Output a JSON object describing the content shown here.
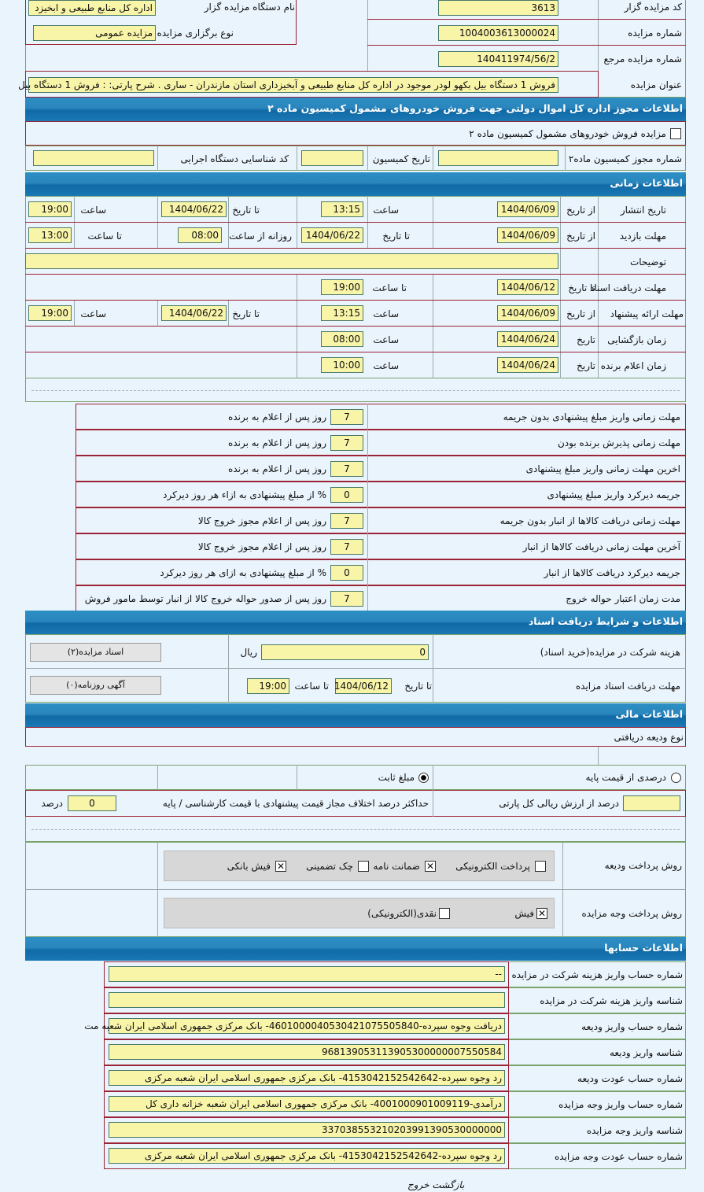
{
  "top": {
    "code_label": "کد مزایده گزار",
    "code": "3613",
    "org_label": "نام دستگاه مزایده گزار",
    "org": "اداره کل منابع طبیعی و ابخیزد",
    "num_label": "شماره مزایده",
    "num": "1004003613000024",
    "type_label": "نوع برگزاری مزایده",
    "type": "مزایده عمومی",
    "ref_label": "شماره مزایده مرجع",
    "ref": "140411974/56/2",
    "title_label": "عنوان مزایده",
    "title": "فروش 1 دستگاه بیل بکهو لودر موجود در اداره کل منابع طبیعی و آبخیزداری استان مازندران - ساری . شرح پارتی: : فروش 1 دستگاه بیل"
  },
  "sec1": {
    "header": "اطلاعات مجوز اداره کل اموال دولتی جهت فروش خودروهای مشمول کمیسیون ماده ۲",
    "checkbox": "مزایده فروش خودروهای مشمول کمیسیون ماده ۲",
    "permit_label": "شماره مجوز کمیسیون ماده۲",
    "date_label": "تاریخ کمیسیون",
    "exec_label": "کد شناسایی دستگاه اجرایی"
  },
  "time": {
    "header": "اطلاعات زمانی",
    "from_date": "از تاریخ",
    "to_date": "تا تاریخ",
    "time": "ساعت",
    "to_time": "تا ساعت",
    "daily_from": "روزانه از ساعت",
    "date": "تاریخ",
    "publish": {
      "label": "تاریخ انتشار",
      "from": "1404/06/09",
      "from_time": "13:15",
      "to": "1404/06/22",
      "to_time": "19:00"
    },
    "visit": {
      "label": "مهلت بازدید",
      "from": "1404/06/09",
      "to": "1404/06/22",
      "daily_from": "08:00",
      "daily_to": "13:00"
    },
    "desc_label": "توضیحات",
    "docs": {
      "label": "مهلت دریافت اسناد",
      "to": "1404/06/12",
      "to_time": "19:00"
    },
    "offer": {
      "label": "مهلت ارائه پیشنهاد",
      "from": "1404/06/09",
      "from_time": "13:15",
      "to": "1404/06/22",
      "to_time": "19:00"
    },
    "open": {
      "label": "زمان بازگشایی",
      "date": "1404/06/24",
      "time": "08:00"
    },
    "winner": {
      "label": "زمان اعلام برنده",
      "date": "1404/06/24",
      "time": "10:00"
    }
  },
  "terms": [
    {
      "label": "مهلت زمانی واریز مبلغ پیشنهادی بدون جریمه",
      "value": "7",
      "unit": "روز پس از اعلام به برنده"
    },
    {
      "label": "مهلت زمانی پذیرش برنده بودن",
      "value": "7",
      "unit": "روز پس از اعلام به برنده"
    },
    {
      "label": "اخرین مهلت زمانی واریز مبلغ پیشنهادی",
      "value": "7",
      "unit": "روز پس از اعلام به برنده"
    },
    {
      "label": "جریمه دیرکرد واریز مبلغ پیشنهادی",
      "value": "0",
      "unit": "% از مبلغ پیشنهادی به ازاء هر روز دیرکرد"
    },
    {
      "label": "مهلت زمانی دریافت کالاها از انبار بدون جریمه",
      "value": "7",
      "unit": "روز پس از اعلام مجوز خروج کالا"
    },
    {
      "label": "آخرین مهلت زمانی دریافت کالاها از انبار",
      "value": "7",
      "unit": "روز پس از اعلام مجوز خروج کالا"
    },
    {
      "label": "جریمه دیرکرد دریافت کالاها از انبار",
      "value": "0",
      "unit": "% از مبلغ پیشنهادی به ازای هر روز دیرکرد"
    },
    {
      "label": "مدت زمان اعتبار حواله خروج",
      "value": "7",
      "unit": "روز پس از صدور حواله خروج کالا از انبار توسط مامور فروش"
    }
  ],
  "docs": {
    "header": "اطلاعات و شرایط دریافت اسناد",
    "fee_label": "هزینه شرکت در مزایده(خرید اسناد)",
    "fee": "0",
    "currency": "ریال",
    "deadline_label": "مهلت دریافت اسناد مزایده",
    "to_date": "تا تاریخ",
    "date": "1404/06/12",
    "to_time": "تا ساعت",
    "time": "19:00",
    "docs_button": "اسناد مزایده(۲)",
    "ad_button": "آگهی روزنامه(۰)"
  },
  "finance": {
    "header": "اطلاعات مالی",
    "deposit_type": "نوع ودیعه دریافتی",
    "radio_percent": "درصدی از قیمت پایه",
    "radio_fixed": "مبلغ ثابت",
    "percent_label": "درصد از ارزش ریالی کل پارتی",
    "max_label": "حداکثر درصد اختلاف مجاز قیمت پیشنهادی با قیمت کارشناسی / پایه",
    "max": "0",
    "max_unit": "درصد",
    "deposit_method_label": "روش پرداخت ودیعه",
    "deposit_methods": [
      {
        "label": "پرداخت الکترونیکی",
        "checked": false
      },
      {
        "label": "ضمانت نامه",
        "checked": true
      },
      {
        "label": "چک تضمینی",
        "checked": false
      },
      {
        "label": "فیش بانکی",
        "checked": true
      }
    ],
    "pay_method_label": "روش پرداخت وجه مزایده",
    "pay_methods": [
      {
        "label": "فیش",
        "checked": true
      },
      {
        "label": "نقدی(الکترونیکی)",
        "checked": false
      }
    ]
  },
  "accounts": {
    "header": "اطلاعات حسابها",
    "rows": [
      {
        "label": "شماره حساب واریز هزینه شرکت در مزایده",
        "value": "--"
      },
      {
        "label": "شناسه واریز هزینه شرکت در مزایده",
        "value": ""
      },
      {
        "label": "شماره حساب واریز ودیعه",
        "value": "دریافت وجوه سپرده-4601000040530421075505840- بانک مرکزی جمهوری اسلامی ایران شعبه مت"
      },
      {
        "label": "شناسه واریز ودیعه",
        "value": "968139053113905300000007550584"
      },
      {
        "label": "شماره حساب عودت ودیعه",
        "value": "رد وجوه سپرده-415304215254264‌2- بانک مرکزی جمهوری اسلامی ایران شعبه مرکزی"
      },
      {
        "label": "شماره حساب واریز وجه مزایده",
        "value": "درآمدی-4001000901009119- بانک مرکزی جمهوری اسلامی ایران شعبه خزانه داری کل"
      },
      {
        "label": "شناسه واریز وجه مزایده",
        "value": "337038553210203991390530000000"
      },
      {
        "label": "شماره حساب عودت وجه مزایده",
        "value": "رد وجوه سپرده-4153042152542642- بانک مرکزی جمهوری اسلامی ایران شعبه مرکزی"
      }
    ]
  },
  "footer": {
    "back": "بازگشت",
    "exit": "خروج"
  }
}
